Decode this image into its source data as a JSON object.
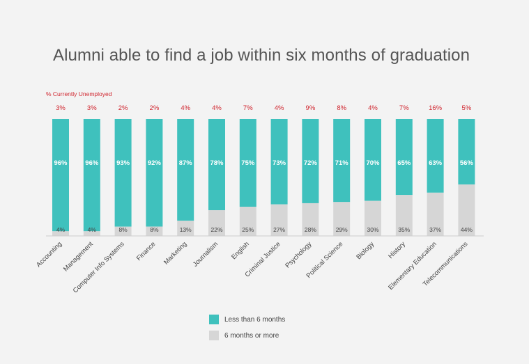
{
  "chart_data": {
    "type": "bar",
    "stacked": true,
    "title": "Alumni able to find a job within six months of graduation",
    "unemployed_label": "% Currently Unemployed",
    "categories": [
      "Accounting",
      "Management",
      "Computer Info Systems",
      "Finance",
      "Marketing",
      "Journalism",
      "English",
      "Criminal Justice",
      "Psychology",
      "Political Science",
      "Biology",
      "History",
      "Elementary Education",
      "Telecommunications"
    ],
    "series": [
      {
        "name": "Less than 6 months",
        "color": "#3fc1bd",
        "values": [
          96,
          96,
          93,
          92,
          87,
          78,
          75,
          73,
          72,
          71,
          70,
          65,
          63,
          56
        ]
      },
      {
        "name": "6 months or more",
        "color": "#d6d6d6",
        "values": [
          4,
          4,
          8,
          8,
          13,
          22,
          25,
          27,
          28,
          29,
          30,
          35,
          37,
          44
        ]
      }
    ],
    "unemployed": [
      3,
      3,
      2,
      2,
      4,
      4,
      7,
      4,
      9,
      8,
      4,
      7,
      16,
      5
    ],
    "value_format": "%",
    "ylim": [
      0,
      100
    ],
    "grid": false,
    "legend_position": "bottom-center",
    "colors": {
      "unemployed_text": "#d0262f",
      "axis": "#cccccc"
    }
  }
}
